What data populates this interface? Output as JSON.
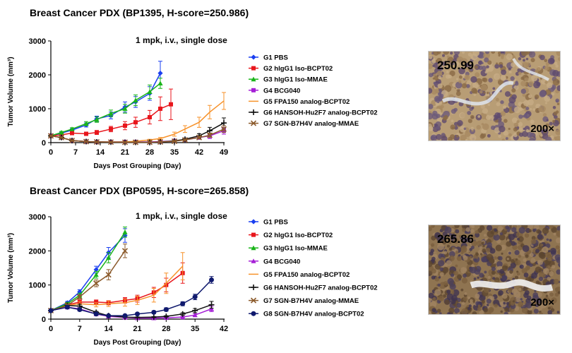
{
  "panels": [
    {
      "title": "Breast Cancer PDX (BP1395, H-score=250.986)",
      "image": {
        "score_label": "250.99",
        "magnification": "200×"
      }
    },
    {
      "title": "Breast Cancer PDX (BP0595, H-score=265.858)",
      "image": {
        "score_label": "265.86",
        "magnification": "200×"
      }
    }
  ],
  "chart_data": [
    {
      "type": "line",
      "annotation": "1 mpk, i.v., single dose",
      "xlabel": "Days Post Grouping (Day)",
      "ylabel": "Tumor Volume (mm³)",
      "xticks": [
        0,
        7,
        14,
        21,
        28,
        35,
        42,
        49
      ],
      "yticks": [
        0,
        1000,
        2000,
        3000
      ],
      "xlim": [
        0,
        49
      ],
      "ylim": [
        0,
        3000
      ],
      "legend_position": "right",
      "series": [
        {
          "name": "G1 PBS",
          "color": "#1a3ff0",
          "marker": "diamond",
          "x": [
            0,
            3,
            6,
            10,
            13,
            17,
            21,
            24,
            28,
            31
          ],
          "y": [
            200,
            280,
            370,
            520,
            700,
            800,
            1050,
            1200,
            1450,
            2050
          ],
          "err": [
            20,
            30,
            40,
            60,
            80,
            100,
            150,
            160,
            200,
            350
          ]
        },
        {
          "name": "G2 hIgG1 Iso-BCPT02",
          "color": "#e8161c",
          "marker": "square",
          "x": [
            0,
            3,
            6,
            10,
            13,
            17,
            21,
            24,
            28,
            31,
            34
          ],
          "y": [
            200,
            230,
            280,
            260,
            300,
            400,
            500,
            600,
            750,
            1000,
            1130
          ],
          "err": [
            20,
            30,
            40,
            50,
            60,
            80,
            120,
            150,
            200,
            350,
            450
          ]
        },
        {
          "name": "G3 hIgG1 Iso-MMAE",
          "color": "#19b419",
          "marker": "triangle",
          "x": [
            0,
            3,
            6,
            10,
            13,
            17,
            21,
            24,
            28,
            31
          ],
          "y": [
            200,
            300,
            400,
            560,
            680,
            860,
            1000,
            1250,
            1500,
            1750
          ],
          "err": [
            20,
            30,
            40,
            60,
            80,
            100,
            130,
            160,
            200,
            150
          ]
        },
        {
          "name": "G4 BCG040",
          "color": "#a51fd6",
          "marker": "square",
          "x": [
            0,
            3,
            6,
            10,
            13,
            17,
            21,
            24,
            28,
            31,
            35,
            38,
            42,
            45,
            49
          ],
          "y": [
            200,
            150,
            60,
            30,
            20,
            20,
            20,
            20,
            20,
            30,
            50,
            80,
            150,
            200,
            350
          ],
          "err": [
            20,
            20,
            15,
            10,
            10,
            10,
            10,
            10,
            10,
            10,
            20,
            30,
            50,
            80,
            100
          ]
        },
        {
          "name": "G5 FPA150 analog-BCPT02",
          "color": "#f7922a",
          "marker": "none",
          "x": [
            0,
            3,
            6,
            10,
            13,
            17,
            21,
            24,
            28,
            31,
            35,
            38,
            42,
            45,
            49
          ],
          "y": [
            200,
            150,
            60,
            30,
            20,
            20,
            20,
            40,
            80,
            120,
            250,
            400,
            600,
            900,
            1230
          ],
          "err": [
            20,
            20,
            15,
            10,
            10,
            10,
            10,
            15,
            20,
            30,
            60,
            100,
            150,
            200,
            250
          ]
        },
        {
          "name": "G6 HANSOH-Hu2F7 analog-BCPT02",
          "color": "#111111",
          "marker": "plus",
          "x": [
            0,
            3,
            6,
            10,
            13,
            17,
            21,
            24,
            28,
            31,
            35,
            38,
            42,
            45,
            49
          ],
          "y": [
            200,
            150,
            60,
            30,
            20,
            15,
            10,
            10,
            10,
            20,
            50,
            100,
            200,
            350,
            580
          ],
          "err": [
            20,
            20,
            15,
            10,
            10,
            10,
            10,
            10,
            10,
            10,
            20,
            30,
            60,
            100,
            150
          ]
        },
        {
          "name": "G7 SGN-B7H4V analog-MMAE",
          "color": "#8b5a2b",
          "marker": "cross",
          "x": [
            0,
            3,
            6,
            10,
            13,
            17,
            21,
            24,
            28,
            31,
            35,
            38,
            42,
            45,
            49
          ],
          "y": [
            200,
            150,
            60,
            30,
            20,
            15,
            10,
            10,
            10,
            20,
            40,
            80,
            150,
            220,
            400
          ],
          "err": [
            20,
            20,
            15,
            10,
            10,
            10,
            10,
            10,
            10,
            10,
            20,
            30,
            40,
            60,
            100
          ]
        }
      ]
    },
    {
      "type": "line",
      "annotation": "1 mpk, i.v., single dose",
      "xlabel": "Days Post Grouping (Day)",
      "ylabel": "Tumor Volume (mm³)",
      "xticks": [
        0,
        7,
        14,
        21,
        28,
        35,
        42
      ],
      "yticks": [
        0,
        1000,
        2000,
        3000
      ],
      "xlim": [
        0,
        42
      ],
      "ylim": [
        0,
        3000
      ],
      "legend_position": "right",
      "series": [
        {
          "name": "G1 PBS",
          "color": "#1a3ff0",
          "marker": "diamond",
          "x": [
            0,
            4,
            7,
            11,
            14,
            18
          ],
          "y": [
            250,
            480,
            800,
            1450,
            1950,
            2450
          ],
          "err": [
            20,
            40,
            60,
            100,
            150,
            200
          ]
        },
        {
          "name": "G2 hIgG1 Iso-BCPT02",
          "color": "#e8161c",
          "marker": "square",
          "x": [
            0,
            4,
            7,
            11,
            14,
            18,
            21,
            25,
            28,
            32
          ],
          "y": [
            250,
            420,
            500,
            500,
            480,
            550,
            600,
            780,
            1000,
            1350
          ],
          "err": [
            20,
            40,
            60,
            60,
            60,
            80,
            100,
            150,
            200,
            300
          ]
        },
        {
          "name": "G3 hIgG1 Iso-MMAE",
          "color": "#19b419",
          "marker": "triangle",
          "x": [
            0,
            4,
            7,
            11,
            14,
            18
          ],
          "y": [
            250,
            450,
            700,
            1300,
            1800,
            2550
          ],
          "err": [
            20,
            40,
            60,
            100,
            150,
            150
          ]
        },
        {
          "name": "G4 BCG040",
          "color": "#a51fd6",
          "marker": "triangle",
          "x": [
            0,
            4,
            7,
            11,
            14,
            18,
            21,
            25,
            28,
            32,
            35,
            39
          ],
          "y": [
            250,
            350,
            300,
            150,
            80,
            50,
            30,
            30,
            40,
            60,
            120,
            300
          ],
          "err": [
            20,
            40,
            40,
            30,
            20,
            15,
            10,
            10,
            15,
            20,
            40,
            80
          ]
        },
        {
          "name": "G5 FPA150 analog-BCPT02",
          "color": "#f7922a",
          "marker": "none",
          "x": [
            0,
            4,
            7,
            11,
            14,
            18,
            21,
            25,
            28,
            32
          ],
          "y": [
            250,
            400,
            450,
            420,
            450,
            480,
            550,
            700,
            1050,
            1550
          ],
          "err": [
            20,
            40,
            60,
            60,
            80,
            100,
            120,
            200,
            300,
            400
          ]
        },
        {
          "name": "G6 HANSOH-Hu2F7 analog-BCPT02",
          "color": "#111111",
          "marker": "plus",
          "x": [
            0,
            4,
            7,
            11,
            14,
            18,
            21,
            25,
            28,
            32,
            35,
            39
          ],
          "y": [
            250,
            400,
            380,
            200,
            100,
            60,
            50,
            60,
            80,
            150,
            250,
            420
          ],
          "err": [
            20,
            40,
            50,
            30,
            20,
            15,
            15,
            15,
            20,
            40,
            60,
            100
          ]
        },
        {
          "name": "G7 SGN-B7H4V analog-MMAE",
          "color": "#8b5a2b",
          "marker": "cross",
          "x": [
            0,
            4,
            7,
            11,
            14,
            18
          ],
          "y": [
            250,
            400,
            650,
            1050,
            1300,
            2000
          ],
          "err": [
            20,
            40,
            60,
            100,
            150,
            200
          ]
        },
        {
          "name": "G8 SGN-B7H4V analog-BCPT02",
          "color": "#101a6e",
          "marker": "circle",
          "x": [
            0,
            4,
            7,
            11,
            14,
            18,
            21,
            25,
            28,
            32,
            35,
            39
          ],
          "y": [
            250,
            350,
            280,
            150,
            100,
            100,
            150,
            200,
            280,
            450,
            650,
            1150
          ],
          "err": [
            20,
            40,
            40,
            30,
            20,
            20,
            30,
            40,
            50,
            60,
            80,
            100
          ]
        }
      ]
    }
  ]
}
